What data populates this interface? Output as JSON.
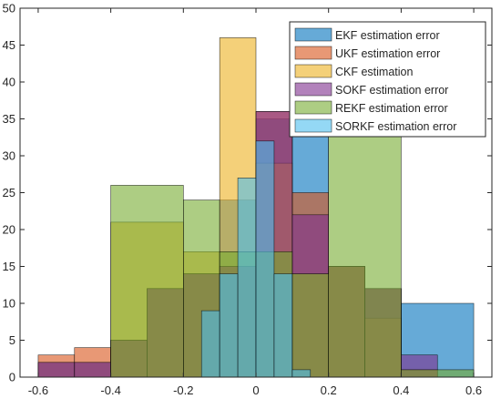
{
  "chart_data": {
    "type": "bar",
    "subtype": "overlapping-histogram",
    "title": "",
    "xlabel": "",
    "ylabel": "",
    "xlim": [
      -0.65,
      0.65
    ],
    "ylim": [
      0,
      50
    ],
    "xticks": [
      -0.6,
      -0.4,
      -0.2,
      0,
      0.2,
      0.4,
      0.6
    ],
    "xtick_labels": [
      "-0.6",
      "-0.4",
      "-0.2",
      "0",
      "0.2",
      "0.4",
      "0.6"
    ],
    "yticks": [
      0,
      5,
      10,
      15,
      20,
      25,
      30,
      35,
      40,
      45,
      50
    ],
    "ytick_labels": [
      "0",
      "5",
      "10",
      "15",
      "20",
      "25",
      "30",
      "35",
      "40",
      "45",
      "50"
    ],
    "grid": false,
    "legend_position": "top-right",
    "series": [
      {
        "name": "EKF estimation error",
        "color": "#0072BD",
        "bins": [
          {
            "x0": -0.6,
            "x1": -0.5,
            "count": 2
          },
          {
            "x0": -0.5,
            "x1": -0.4,
            "count": 2
          },
          {
            "x0": -0.4,
            "x1": -0.3,
            "count": 5
          },
          {
            "x0": -0.3,
            "x1": -0.2,
            "count": 12
          },
          {
            "x0": -0.2,
            "x1": -0.1,
            "count": 14
          },
          {
            "x0": -0.1,
            "x1": 0.0,
            "count": 24
          },
          {
            "x0": 0.0,
            "x1": 0.1,
            "count": 35
          },
          {
            "x0": 0.1,
            "x1": 0.2,
            "count": 35
          },
          {
            "x0": 0.2,
            "x1": 0.3,
            "count": 15
          },
          {
            "x0": 0.3,
            "x1": 0.4,
            "count": 12
          },
          {
            "x0": 0.4,
            "x1": 0.6,
            "count": 10
          }
        ]
      },
      {
        "name": "UKF estimation error",
        "color": "#D95319",
        "bins": [
          {
            "x0": -0.6,
            "x1": -0.5,
            "count": 3
          },
          {
            "x0": -0.5,
            "x1": -0.4,
            "count": 4
          },
          {
            "x0": -0.4,
            "x1": -0.3,
            "count": 5
          },
          {
            "x0": -0.3,
            "x1": -0.2,
            "count": 12
          },
          {
            "x0": -0.2,
            "x1": -0.1,
            "count": 14
          },
          {
            "x0": -0.1,
            "x1": 0.0,
            "count": 15
          },
          {
            "x0": 0.0,
            "x1": 0.1,
            "count": 36
          },
          {
            "x0": 0.1,
            "x1": 0.2,
            "count": 25
          },
          {
            "x0": 0.2,
            "x1": 0.3,
            "count": 15
          },
          {
            "x0": 0.3,
            "x1": 0.4,
            "count": 12
          },
          {
            "x0": 0.4,
            "x1": 0.5,
            "count": 1
          }
        ]
      },
      {
        "name": "CKF estimation",
        "color": "#EDB120",
        "bins": [
          {
            "x0": -0.4,
            "x1": -0.2,
            "count": 21
          },
          {
            "x0": -0.2,
            "x1": -0.1,
            "count": 17
          },
          {
            "x0": -0.1,
            "x1": 0.0,
            "count": 46
          },
          {
            "x0": 0.0,
            "x1": 0.1,
            "count": 29
          },
          {
            "x0": 0.1,
            "x1": 0.2,
            "count": 14
          },
          {
            "x0": 0.2,
            "x1": 0.3,
            "count": 15
          },
          {
            "x0": 0.3,
            "x1": 0.4,
            "count": 8
          }
        ]
      },
      {
        "name": "SOKF estimation error",
        "color": "#7E2F8E",
        "bins": [
          {
            "x0": -0.6,
            "x1": -0.5,
            "count": 2
          },
          {
            "x0": -0.5,
            "x1": -0.4,
            "count": 2
          },
          {
            "x0": -0.4,
            "x1": -0.3,
            "count": 5
          },
          {
            "x0": -0.3,
            "x1": -0.2,
            "count": 12
          },
          {
            "x0": -0.2,
            "x1": -0.1,
            "count": 14
          },
          {
            "x0": -0.1,
            "x1": 0.0,
            "count": 15
          },
          {
            "x0": 0.0,
            "x1": 0.1,
            "count": 36
          },
          {
            "x0": 0.1,
            "x1": 0.2,
            "count": 22
          },
          {
            "x0": 0.2,
            "x1": 0.3,
            "count": 15
          },
          {
            "x0": 0.3,
            "x1": 0.4,
            "count": 12
          },
          {
            "x0": 0.4,
            "x1": 0.5,
            "count": 3
          }
        ]
      },
      {
        "name": "REKF estimation error",
        "color": "#77AC30",
        "bins": [
          {
            "x0": -0.4,
            "x1": -0.2,
            "count": 26
          },
          {
            "x0": -0.2,
            "x1": -0.1,
            "count": 24
          },
          {
            "x0": -0.1,
            "x1": 0.0,
            "count": 17
          },
          {
            "x0": 0.0,
            "x1": 0.1,
            "count": 17
          },
          {
            "x0": 0.1,
            "x1": 0.2,
            "count": 14
          },
          {
            "x0": 0.2,
            "x1": 0.4,
            "count": 35
          },
          {
            "x0": 0.4,
            "x1": 0.6,
            "count": 1
          }
        ]
      },
      {
        "name": "SORKF estimation error",
        "color": "#4DBEEE",
        "bins": [
          {
            "x0": -0.15,
            "x1": -0.1,
            "count": 9
          },
          {
            "x0": -0.1,
            "x1": -0.05,
            "count": 14
          },
          {
            "x0": -0.05,
            "x1": 0.0,
            "count": 27
          },
          {
            "x0": 0.0,
            "x1": 0.05,
            "count": 32
          },
          {
            "x0": 0.05,
            "x1": 0.1,
            "count": 14
          },
          {
            "x0": 0.1,
            "x1": 0.15,
            "count": 1
          }
        ]
      }
    ]
  }
}
